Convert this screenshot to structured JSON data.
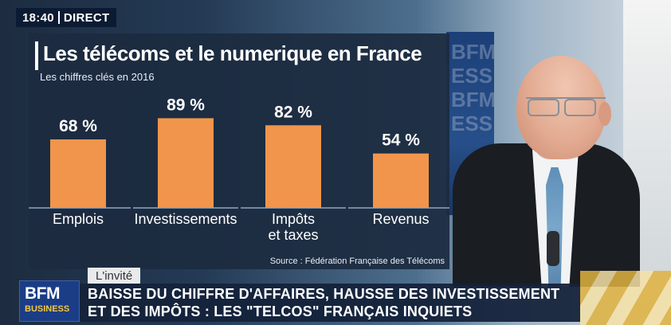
{
  "broadcast": {
    "time": "18:40",
    "live_label": "DIRECT"
  },
  "studio": {
    "screen_text": [
      "BFM",
      "ESS",
      "BFM",
      "ESS"
    ]
  },
  "infographic": {
    "title": "Les télécoms et le numerique en France",
    "subtitle": "Les chiffres clés en 2016",
    "source": "Source : Fédération Française des Télécoms"
  },
  "chart_data": {
    "type": "bar",
    "title": "Les télécoms et le numerique en France",
    "subtitle": "Les chiffres clés en 2016",
    "categories": [
      "Emplois",
      "Investissements",
      "Impôts et taxes",
      "Revenus"
    ],
    "category_lines": [
      [
        "Emplois"
      ],
      [
        "Investissements"
      ],
      [
        "Impôts",
        "et taxes"
      ],
      [
        "Revenus"
      ]
    ],
    "values": [
      68,
      89,
      82,
      54
    ],
    "value_labels": [
      "68 %",
      "89 %",
      "82 %",
      "54 %"
    ],
    "ylim": [
      0,
      100
    ],
    "grid": false,
    "legend": "none",
    "colors": {
      "bar": "#f0954b",
      "baseline": "#8fa6bf",
      "text": "#ffffff"
    }
  },
  "lower_third": {
    "label": "L'invité",
    "headline_line1": "BAISSE DU CHIFFRE D'AFFAIRES, HAUSSE DES INVESTISSEMENT",
    "headline_line2": "ET DES IMPÔTS : LES \"TELCOS\" FRANÇAIS INQUIETS"
  },
  "logo": {
    "name": "BFM",
    "channel": "BUSINESS"
  }
}
